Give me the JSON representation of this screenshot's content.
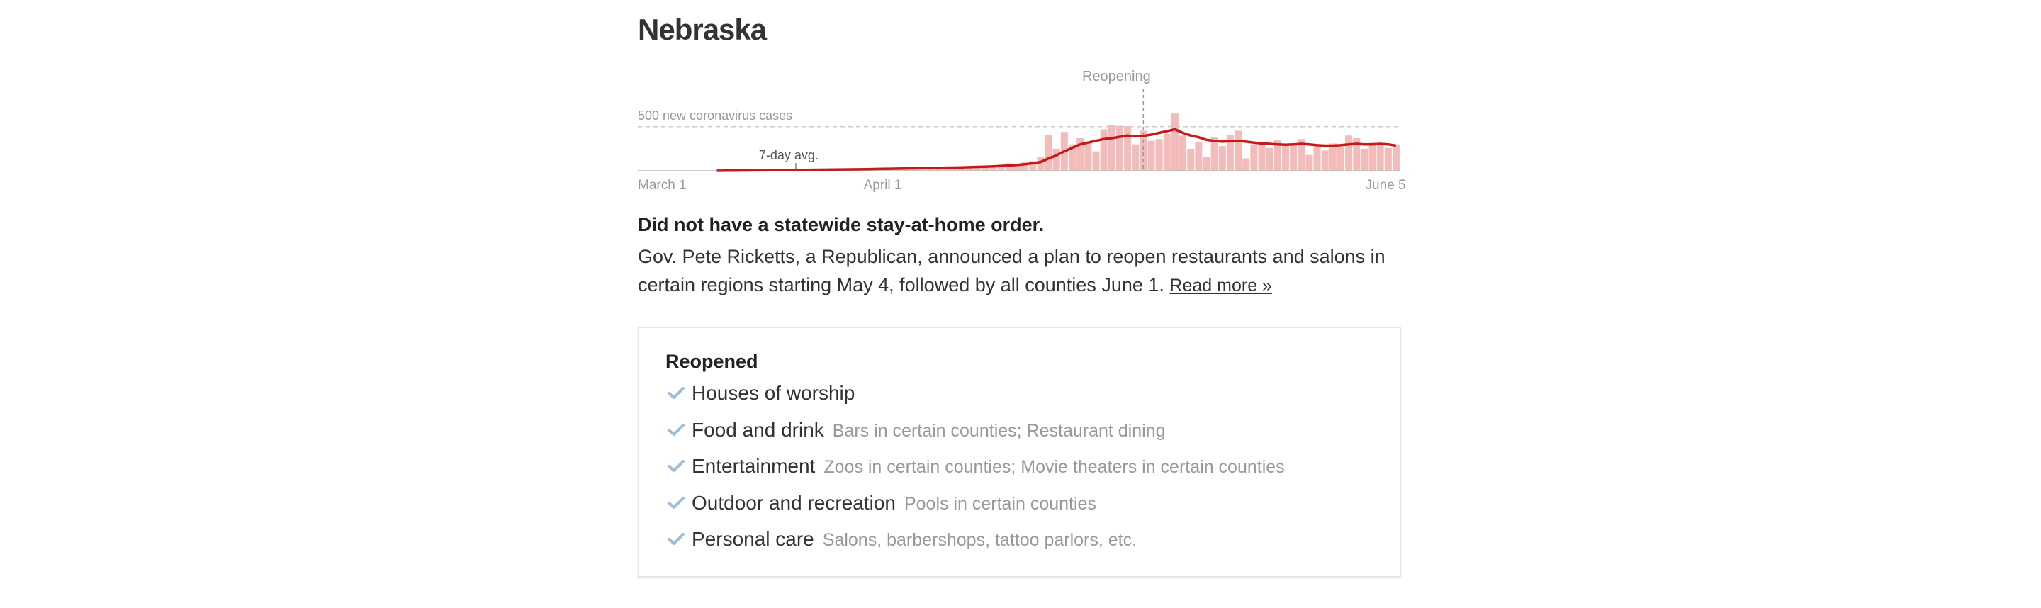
{
  "header": {
    "title": "Nebraska"
  },
  "chart_data": {
    "type": "bar",
    "categories": [
      "March 1",
      null,
      null,
      null,
      null,
      null,
      null,
      null,
      null,
      null,
      null,
      null,
      null,
      null,
      null,
      null,
      null,
      null,
      null,
      null,
      null,
      null,
      null,
      null,
      null,
      null,
      null,
      null,
      null,
      null,
      null,
      "April 1",
      null,
      null,
      null,
      null,
      null,
      null,
      null,
      null,
      null,
      null,
      null,
      null,
      null,
      null,
      null,
      null,
      null,
      null,
      null,
      null,
      null,
      null,
      null,
      null,
      null,
      null,
      null,
      null,
      null,
      null,
      null,
      null,
      null,
      null,
      null,
      null,
      null,
      null,
      null,
      null,
      null,
      null,
      null,
      null,
      null,
      null,
      null,
      null,
      null,
      null,
      null,
      null,
      null,
      null,
      null,
      null,
      null,
      null,
      null,
      null,
      null,
      null,
      null,
      null,
      "June 5"
    ],
    "values": [
      0,
      0,
      0,
      0,
      0,
      1,
      0,
      2,
      1,
      3,
      2,
      3,
      5,
      4,
      7,
      6,
      8,
      5,
      10,
      12,
      9,
      14,
      11,
      15,
      17,
      12,
      18,
      20,
      16,
      22,
      25,
      28,
      24,
      30,
      35,
      27,
      38,
      33,
      40,
      42,
      36,
      45,
      50,
      48,
      60,
      55,
      70,
      85,
      78,
      95,
      110,
      160,
      410,
      250,
      440,
      300,
      370,
      330,
      220,
      470,
      515,
      510,
      505,
      300,
      455,
      340,
      360,
      420,
      650,
      400,
      250,
      330,
      160,
      380,
      280,
      410,
      455,
      140,
      300,
      320,
      260,
      350,
      290,
      310,
      360,
      180,
      300,
      230,
      310,
      270,
      400,
      370,
      250,
      320,
      290,
      260,
      300
    ],
    "color": "#f3bcbb",
    "average": {
      "name": "7-day avg.",
      "color": "#c41a1a",
      "values": [
        null,
        null,
        null,
        null,
        null,
        null,
        null,
        null,
        null,
        null,
        1,
        2,
        2,
        3,
        4,
        5,
        5,
        6,
        7,
        8,
        8,
        10,
        11,
        12,
        13,
        14,
        15,
        16,
        17,
        18,
        20,
        22,
        23,
        25,
        27,
        28,
        30,
        32,
        33,
        35,
        36,
        38,
        41,
        44,
        47,
        50,
        55,
        60,
        66,
        74,
        85,
        100,
        140,
        175,
        220,
        260,
        300,
        320,
        340,
        360,
        370,
        385,
        400,
        390,
        395,
        410,
        430,
        450,
        470,
        430,
        400,
        380,
        350,
        340,
        330,
        335,
        340,
        330,
        320,
        310,
        305,
        300,
        295,
        300,
        305,
        300,
        290,
        285,
        285,
        290,
        300,
        305,
        300,
        300,
        305,
        300,
        285
      ]
    },
    "ylim": [
      0,
      900
    ],
    "yticks": [
      {
        "value": 500,
        "label": "500 new coronavirus cases"
      }
    ],
    "annotations": [
      {
        "text": "Reopening",
        "x": 64
      }
    ]
  },
  "summary": {
    "headline": "Did not have a statewide stay-at-home order.",
    "body": "Gov. Pete Ricketts, a Republican, announced a plan to reopen restaurants and salons in certain regions starting May 4, followed by all counties June 1.",
    "link": "Read more »"
  },
  "reopened": {
    "title": "Reopened",
    "items": [
      {
        "category": "Houses of worship"
      },
      {
        "category": "Food and drink",
        "detail": "Bars in certain counties; Restaurant dining"
      },
      {
        "category": "Entertainment",
        "detail": "Zoos in certain counties; Movie theaters in certain counties"
      },
      {
        "category": "Outdoor and recreation",
        "detail": "Pools in certain counties"
      },
      {
        "category": "Personal care",
        "detail": "Salons, barbershops, tattoo parlors, etc."
      }
    ]
  }
}
